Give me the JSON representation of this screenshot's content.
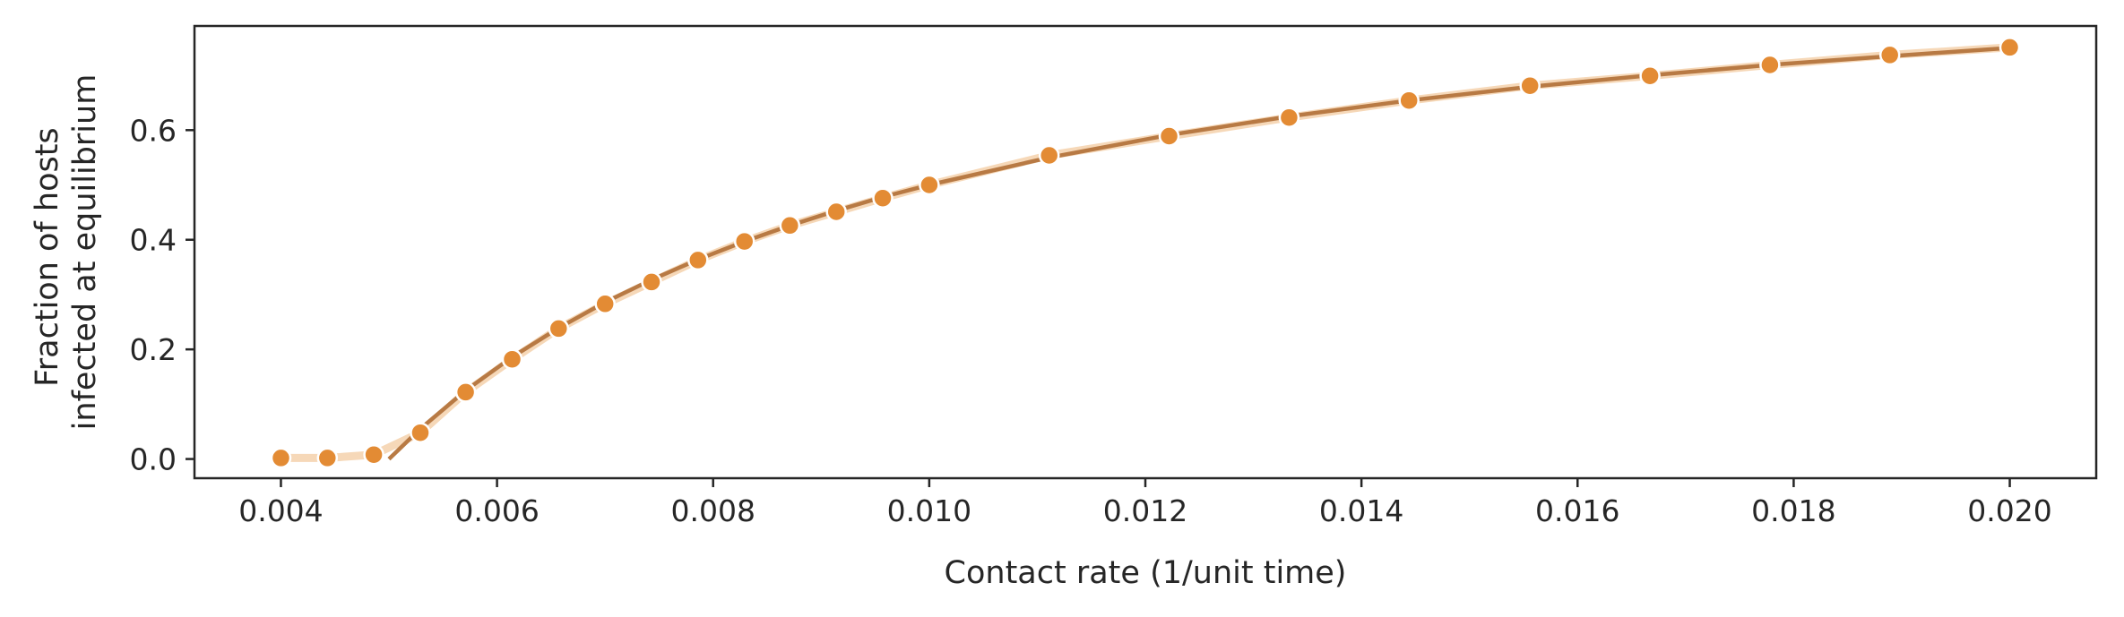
{
  "chart_data": {
    "type": "line",
    "title": "",
    "xlabel": "Contact rate (1/unit time)",
    "ylabel_lines": [
      "Fraction of hosts",
      "infected at equilibrium"
    ],
    "xlim": [
      0.0032,
      0.0208
    ],
    "ylim": [
      -0.035,
      0.79
    ],
    "xticks": [
      0.004,
      0.006,
      0.008,
      0.01,
      0.012,
      0.014,
      0.016,
      0.018,
      0.02
    ],
    "xtick_labels": [
      "0.004",
      "0.006",
      "0.008",
      "0.010",
      "0.012",
      "0.014",
      "0.016",
      "0.018",
      "0.020"
    ],
    "yticks": [
      0.0,
      0.2,
      0.4,
      0.6
    ],
    "ytick_labels": [
      "0.0",
      "0.2",
      "0.4",
      "0.6"
    ],
    "grid": false,
    "series": [
      {
        "style": "markers+band",
        "color": "#e38b34",
        "x": [
          0.004,
          0.00443,
          0.00486,
          0.00529,
          0.00571,
          0.00614,
          0.00657,
          0.007,
          0.00743,
          0.00786,
          0.00829,
          0.00871,
          0.00914,
          0.00957,
          0.01,
          0.01111,
          0.01222,
          0.01333,
          0.01444,
          0.01556,
          0.01667,
          0.01778,
          0.01889,
          0.02
        ],
        "y": [
          0.002,
          0.002,
          0.008,
          0.048,
          0.122,
          0.182,
          0.238,
          0.283,
          0.323,
          0.363,
          0.397,
          0.426,
          0.451,
          0.476,
          0.5,
          0.554,
          0.589,
          0.623,
          0.654,
          0.681,
          0.699,
          0.719,
          0.737,
          0.751
        ]
      },
      {
        "style": "line",
        "color": "#b87a44",
        "x": [
          0.005,
          0.00529,
          0.00571,
          0.00614,
          0.00657,
          0.007,
          0.00743,
          0.00786,
          0.00829,
          0.00871,
          0.00914,
          0.00957,
          0.01,
          0.01111,
          0.01222,
          0.01333,
          0.01444,
          0.01556,
          0.01667,
          0.01778,
          0.01889,
          0.02
        ],
        "y": [
          0.0,
          0.055,
          0.125,
          0.186,
          0.239,
          0.286,
          0.327,
          0.364,
          0.397,
          0.426,
          0.453,
          0.478,
          0.5,
          0.55,
          0.591,
          0.625,
          0.654,
          0.679,
          0.7,
          0.719,
          0.735,
          0.75
        ]
      }
    ]
  }
}
